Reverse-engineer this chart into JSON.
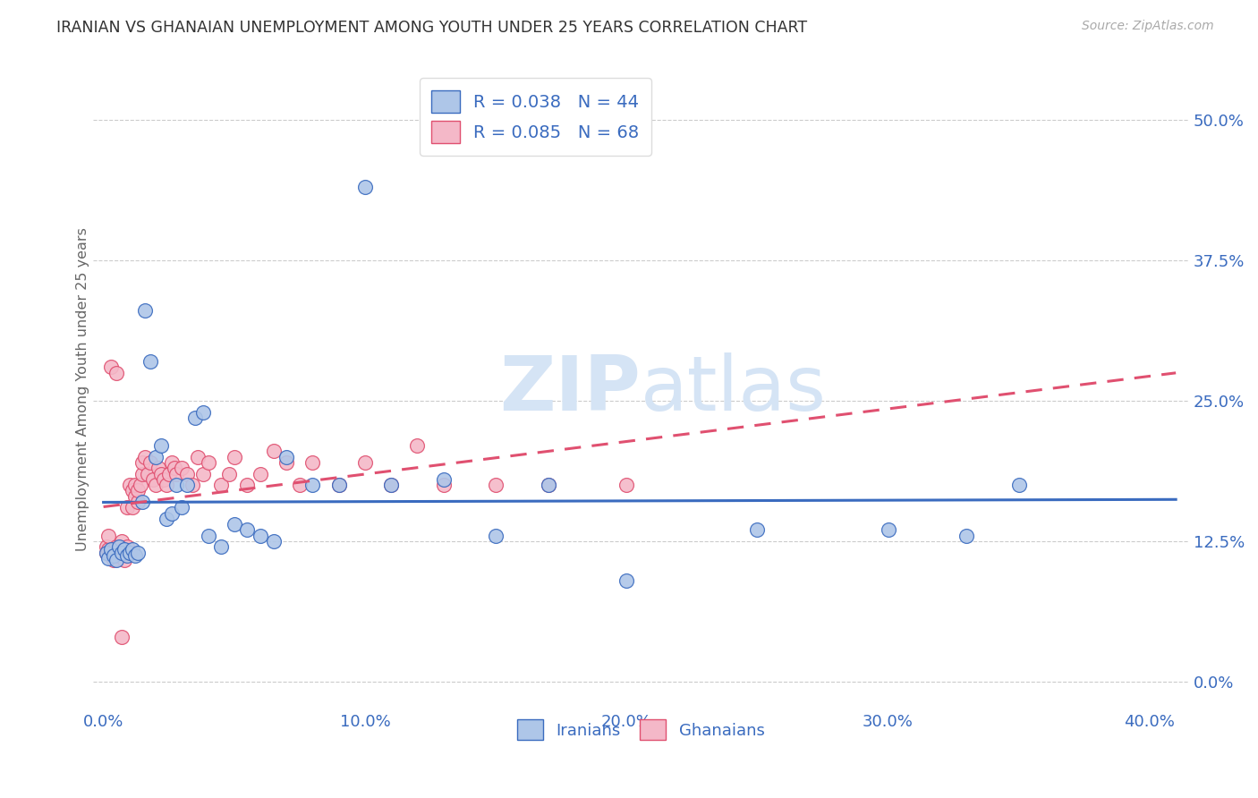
{
  "title": "IRANIAN VS GHANAIAN UNEMPLOYMENT AMONG YOUTH UNDER 25 YEARS CORRELATION CHART",
  "source": "Source: ZipAtlas.com",
  "ylabel": "Unemployment Among Youth under 25 years",
  "xlabel_ticks": [
    "0.0%",
    "10.0%",
    "20.0%",
    "30.0%",
    "40.0%"
  ],
  "xlabel_vals": [
    0.0,
    0.1,
    0.2,
    0.3,
    0.4
  ],
  "ylabel_ticks": [
    "50.0%",
    "37.5%",
    "25.0%",
    "12.5%",
    "0.0%"
  ],
  "ylabel_vals": [
    0.5,
    0.375,
    0.25,
    0.125,
    0.0
  ],
  "xlim": [
    -0.004,
    0.415
  ],
  "ylim": [
    -0.025,
    0.545
  ],
  "iranian_R": 0.038,
  "iranian_N": 44,
  "ghanaian_R": 0.085,
  "ghanaian_N": 68,
  "iranian_color": "#aec6e8",
  "ghanaian_color": "#f4b8c8",
  "trend_iranian_color": "#3a6bbf",
  "trend_ghanaian_color": "#e05070",
  "legend_text_color": "#3a6bbf",
  "axis_tick_color": "#3a6bbf",
  "title_color": "#333333",
  "watermark_zip": "ZIP",
  "watermark_atlas": "atlas",
  "watermark_color": "#d5e4f5",
  "iranians_x": [
    0.001,
    0.002,
    0.003,
    0.004,
    0.005,
    0.006,
    0.007,
    0.008,
    0.009,
    0.01,
    0.011,
    0.012,
    0.013,
    0.015,
    0.016,
    0.018,
    0.02,
    0.022,
    0.024,
    0.026,
    0.028,
    0.03,
    0.032,
    0.035,
    0.038,
    0.04,
    0.045,
    0.05,
    0.055,
    0.06,
    0.065,
    0.07,
    0.08,
    0.09,
    0.1,
    0.11,
    0.13,
    0.15,
    0.17,
    0.2,
    0.25,
    0.3,
    0.33,
    0.35
  ],
  "iranians_y": [
    0.115,
    0.11,
    0.118,
    0.112,
    0.108,
    0.12,
    0.115,
    0.118,
    0.112,
    0.115,
    0.118,
    0.112,
    0.115,
    0.16,
    0.33,
    0.285,
    0.2,
    0.21,
    0.145,
    0.15,
    0.175,
    0.155,
    0.175,
    0.235,
    0.24,
    0.13,
    0.12,
    0.14,
    0.135,
    0.13,
    0.125,
    0.2,
    0.175,
    0.175,
    0.44,
    0.175,
    0.18,
    0.13,
    0.175,
    0.09,
    0.135,
    0.135,
    0.13,
    0.175
  ],
  "ghanaians_x": [
    0.001,
    0.001,
    0.002,
    0.002,
    0.003,
    0.003,
    0.004,
    0.004,
    0.005,
    0.005,
    0.006,
    0.006,
    0.007,
    0.007,
    0.008,
    0.008,
    0.009,
    0.009,
    0.01,
    0.01,
    0.011,
    0.011,
    0.012,
    0.012,
    0.013,
    0.013,
    0.014,
    0.015,
    0.015,
    0.016,
    0.017,
    0.018,
    0.019,
    0.02,
    0.021,
    0.022,
    0.023,
    0.024,
    0.025,
    0.026,
    0.027,
    0.028,
    0.03,
    0.032,
    0.034,
    0.036,
    0.038,
    0.04,
    0.045,
    0.048,
    0.05,
    0.055,
    0.06,
    0.065,
    0.07,
    0.075,
    0.08,
    0.09,
    0.1,
    0.11,
    0.12,
    0.13,
    0.15,
    0.17,
    0.2,
    0.003,
    0.005,
    0.007
  ],
  "ghanaians_y": [
    0.115,
    0.12,
    0.118,
    0.13,
    0.112,
    0.115,
    0.108,
    0.118,
    0.112,
    0.12,
    0.115,
    0.118,
    0.112,
    0.125,
    0.108,
    0.115,
    0.155,
    0.12,
    0.115,
    0.175,
    0.155,
    0.17,
    0.165,
    0.175,
    0.16,
    0.17,
    0.175,
    0.185,
    0.195,
    0.2,
    0.185,
    0.195,
    0.18,
    0.175,
    0.19,
    0.185,
    0.18,
    0.175,
    0.185,
    0.195,
    0.19,
    0.185,
    0.19,
    0.185,
    0.175,
    0.2,
    0.185,
    0.195,
    0.175,
    0.185,
    0.2,
    0.175,
    0.185,
    0.205,
    0.195,
    0.175,
    0.195,
    0.175,
    0.195,
    0.175,
    0.21,
    0.175,
    0.175,
    0.175,
    0.175,
    0.28,
    0.275,
    0.04
  ]
}
